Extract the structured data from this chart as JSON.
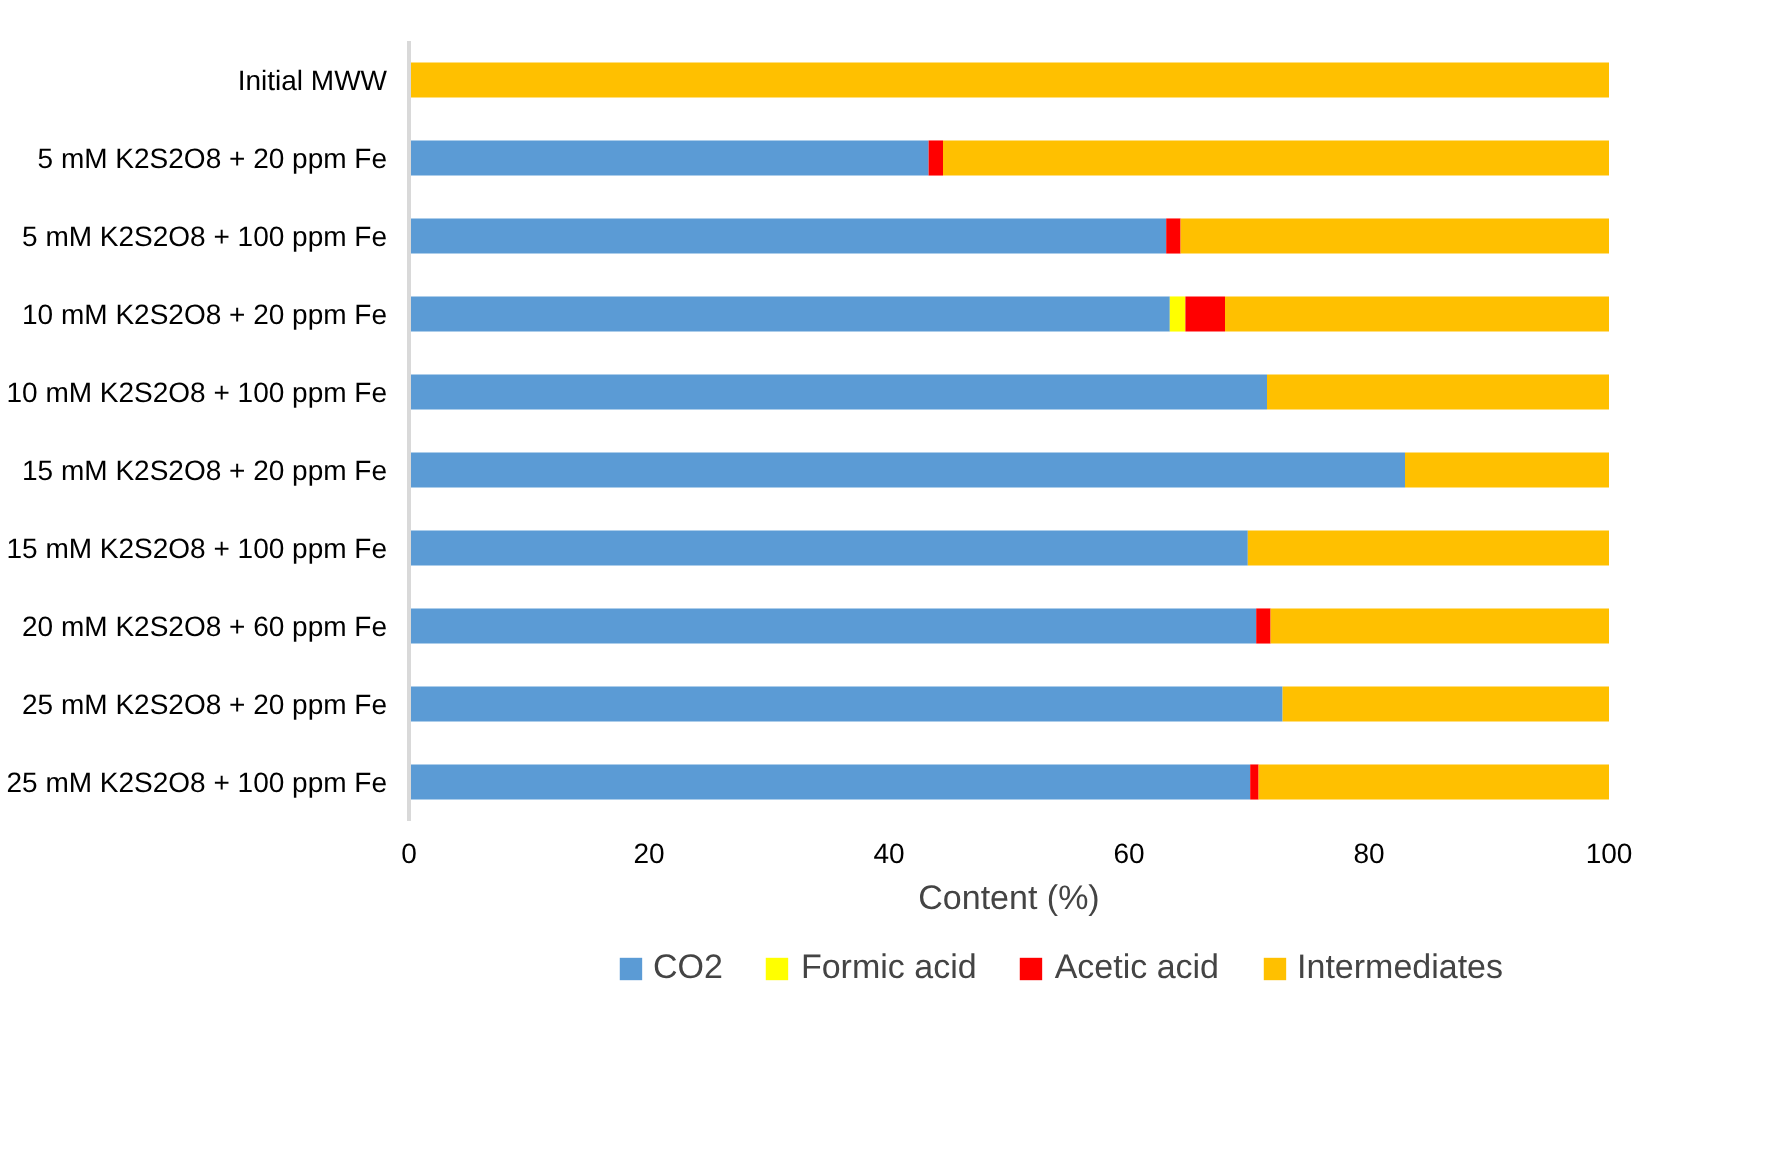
{
  "chart_data": {
    "type": "bar",
    "orientation": "horizontal",
    "stacked": true,
    "categories": [
      "Initial MWW",
      "5 mM K2S2O8 + 20 ppm Fe",
      "5 mM K2S2O8 + 100 ppm Fe",
      "10 mM K2S2O8 + 20 ppm Fe",
      "10 mM K2S2O8 + 100 ppm Fe",
      "15 mM K2S2O8 + 20 ppm Fe",
      "15 mM K2S2O8 + 100 ppm Fe",
      "20 mM K2S2O8 + 60 ppm Fe",
      "25 mM K2S2O8 + 20 ppm Fe",
      "25 mM K2S2O8 + 100 ppm Fe"
    ],
    "series": [
      {
        "name": "CO2",
        "color": "#5b9bd5",
        "values": [
          0,
          43.3,
          63.1,
          63.4,
          71.5,
          83.0,
          69.9,
          70.6,
          72.8,
          70.1
        ]
      },
      {
        "name": "Formic acid",
        "color": "#ffff00",
        "values": [
          0,
          0,
          0,
          1.3,
          0,
          0,
          0,
          0,
          0,
          0
        ]
      },
      {
        "name": "Acetic acid",
        "color": "#ff0000",
        "values": [
          0,
          1.2,
          1.2,
          3.3,
          0,
          0,
          0,
          1.2,
          0,
          0.7
        ]
      },
      {
        "name": "Intermediates",
        "color": "#ffc000",
        "values": [
          100,
          55.5,
          35.7,
          32.0,
          28.5,
          17.0,
          30.1,
          28.2,
          27.2,
          29.2
        ]
      }
    ],
    "xlabel": "Content (%)",
    "xlim": [
      0,
      100
    ],
    "xticks": [
      0,
      20,
      40,
      60,
      80,
      100
    ],
    "grid": false,
    "legend": "bottom"
  }
}
